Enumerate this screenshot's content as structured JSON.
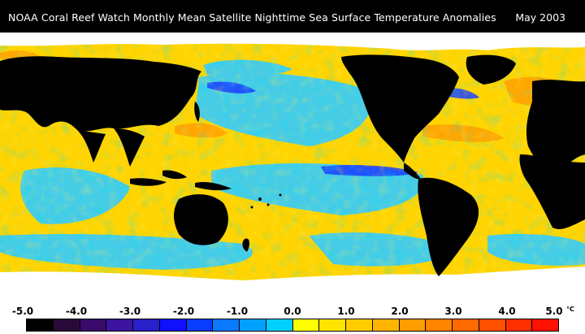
{
  "header": {
    "title": "NOAA Coral Reef Watch Monthly Mean Satellite Nighttime Sea Surface Temperature Anomalies",
    "date": "May 2003"
  },
  "colors": {
    "land": "#000000",
    "ice": "#ffffff",
    "ocean_warm": "#ffd700",
    "ocean_near_zero": "#ffff00",
    "ocean_cool": "#00c8ff",
    "ocean_cold": "#0000ff"
  },
  "legend": {
    "tick_labels": [
      "-5.0",
      "-4.0",
      "-3.0",
      "-2.0",
      "-1.0",
      "0.0",
      "1.0",
      "2.0",
      "3.0",
      "4.0",
      "5.0"
    ],
    "unit": "°C",
    "swatches": [
      "#000000",
      "#2a0a3a",
      "#3a0a6a",
      "#3c14a0",
      "#2820c8",
      "#1010ff",
      "#0a3cff",
      "#0a78ff",
      "#00a0ff",
      "#00d0ff",
      "#ffff00",
      "#ffe400",
      "#ffcc00",
      "#ffb400",
      "#ff9c00",
      "#ff8400",
      "#ff6a00",
      "#ff5000",
      "#ff3000",
      "#ff1000"
    ]
  }
}
